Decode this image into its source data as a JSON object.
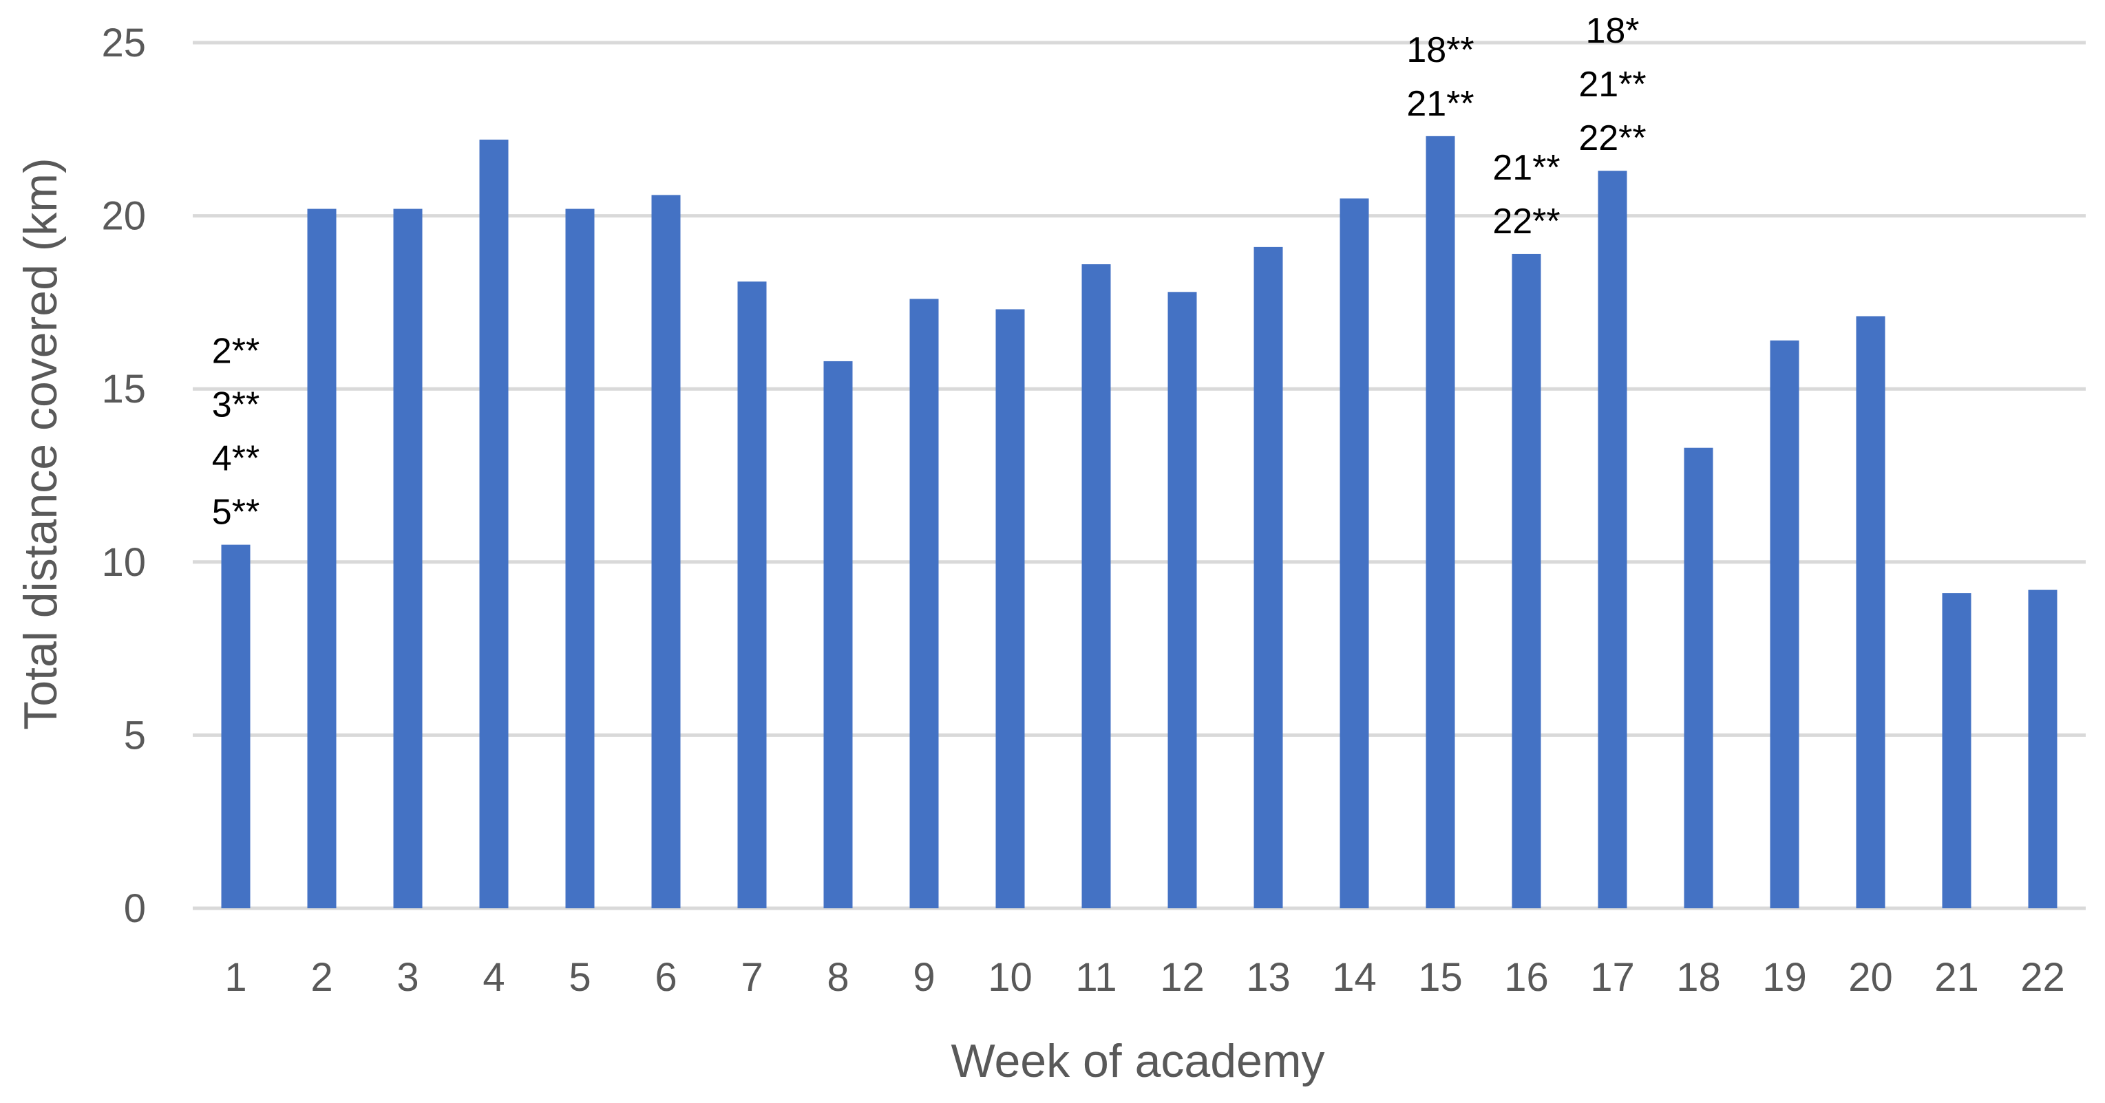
{
  "chart_data": {
    "type": "bar",
    "title": "",
    "xlabel": "Week of academy",
    "ylabel": "Total distance covered (km)",
    "ylim": [
      0,
      25
    ],
    "yticks": [
      0,
      5,
      10,
      15,
      20,
      25
    ],
    "grid": true,
    "legend": "none",
    "bar_color": "#4472c4",
    "categories": [
      "1",
      "2",
      "3",
      "4",
      "5",
      "6",
      "7",
      "8",
      "9",
      "10",
      "11",
      "12",
      "13",
      "14",
      "15",
      "16",
      "17",
      "18",
      "19",
      "20",
      "21",
      "22"
    ],
    "values": [
      10.5,
      20.2,
      20.2,
      22.2,
      20.2,
      20.6,
      18.1,
      15.8,
      17.6,
      17.3,
      18.6,
      17.8,
      19.1,
      20.5,
      22.3,
      18.9,
      21.3,
      13.3,
      16.4,
      17.1,
      9.1,
      9.2
    ],
    "annotations": [
      {
        "category": "1",
        "lines": [
          "2**",
          "3**",
          "4**",
          "5**"
        ]
      },
      {
        "category": "15",
        "lines": [
          "18**",
          "21**"
        ]
      },
      {
        "category": "16",
        "lines": [
          "21**",
          "22**"
        ]
      },
      {
        "category": "17",
        "lines": [
          "18*",
          "21**",
          "22**"
        ]
      }
    ]
  }
}
